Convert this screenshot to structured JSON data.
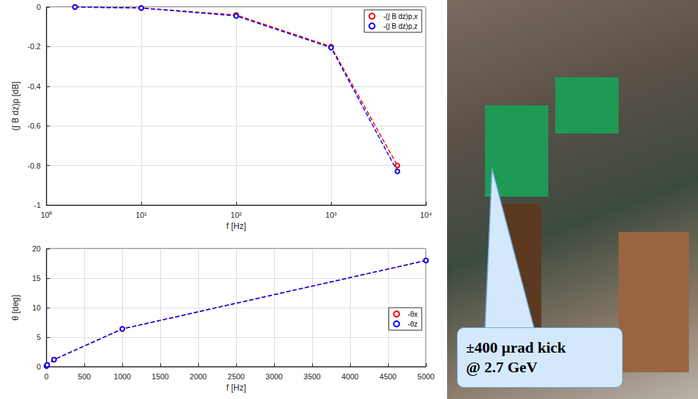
{
  "chart_data": [
    {
      "type": "line",
      "x_label": "f [Hz]",
      "y_label": "(∫ B dz)p [dB]",
      "log": "x",
      "grid": true,
      "legend": "top-right",
      "marker": "circle",
      "line_style": "dashed",
      "xlim": [
        1,
        10000
      ],
      "xticks": [
        {
          "value": 1,
          "label": "10⁰"
        },
        {
          "value": 10,
          "label": "10¹"
        },
        {
          "value": 100,
          "label": "10²"
        },
        {
          "value": 1000,
          "label": "10³"
        },
        {
          "value": 10000,
          "label": "10⁴"
        }
      ],
      "ylim": [
        -1,
        0
      ],
      "yticks": [
        -1,
        -0.8,
        -0.6,
        -0.4,
        -0.2,
        0
      ],
      "x": [
        2,
        10,
        100,
        1000,
        5000
      ],
      "series": [
        {
          "name": "-(∫ B dz)p,x",
          "color": "#ff0000",
          "values": [
            0,
            -0.005,
            -0.04,
            -0.2,
            -0.8
          ]
        },
        {
          "name": "-(∫ B dz)p,z",
          "color": "#0000ff",
          "values": [
            0,
            -0.005,
            -0.045,
            -0.205,
            -0.83
          ]
        }
      ]
    },
    {
      "type": "line",
      "x_label": "f [Hz]",
      "y_label": "θ [deg]",
      "grid": true,
      "legend": "right",
      "marker": "circle",
      "line_style": "dashed",
      "xlim": [
        0,
        5000
      ],
      "xticks": [
        0,
        500,
        1000,
        1500,
        2000,
        2500,
        3000,
        3500,
        4000,
        4500,
        5000
      ],
      "ylim": [
        0,
        20
      ],
      "yticks": [
        0,
        5,
        10,
        15,
        20
      ],
      "x": [
        2,
        10,
        100,
        1000,
        5000
      ],
      "series": [
        {
          "name": "-θx",
          "color": "#ff0000",
          "values": [
            0.1,
            0.3,
            1.2,
            6.4,
            18
          ]
        },
        {
          "name": "-θz",
          "color": "#0000ff",
          "values": [
            0.1,
            0.3,
            1.2,
            6.4,
            18
          ]
        }
      ]
    }
  ],
  "callout": {
    "lines": [
      "±400 µrad kick",
      "@ 2.7 GeV"
    ]
  }
}
